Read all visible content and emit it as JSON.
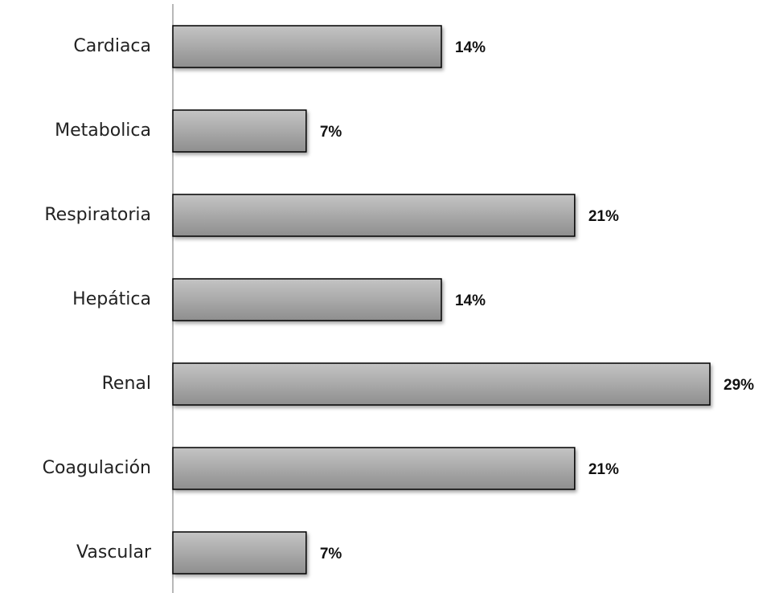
{
  "chart_data": {
    "type": "bar",
    "orientation": "horizontal",
    "categories": [
      "Cardiaca",
      "Metabolica",
      "Respiratoria",
      "Hepática",
      "Renal",
      "Coagulación",
      "Vascular"
    ],
    "values": [
      14.3,
      7.1,
      21.4,
      14.3,
      28.6,
      21.4,
      7.1
    ],
    "value_labels": [
      "14%",
      "7%",
      "21%",
      "14%",
      "29%",
      "21%",
      "7%"
    ],
    "color": "#a6a6a6"
  }
}
